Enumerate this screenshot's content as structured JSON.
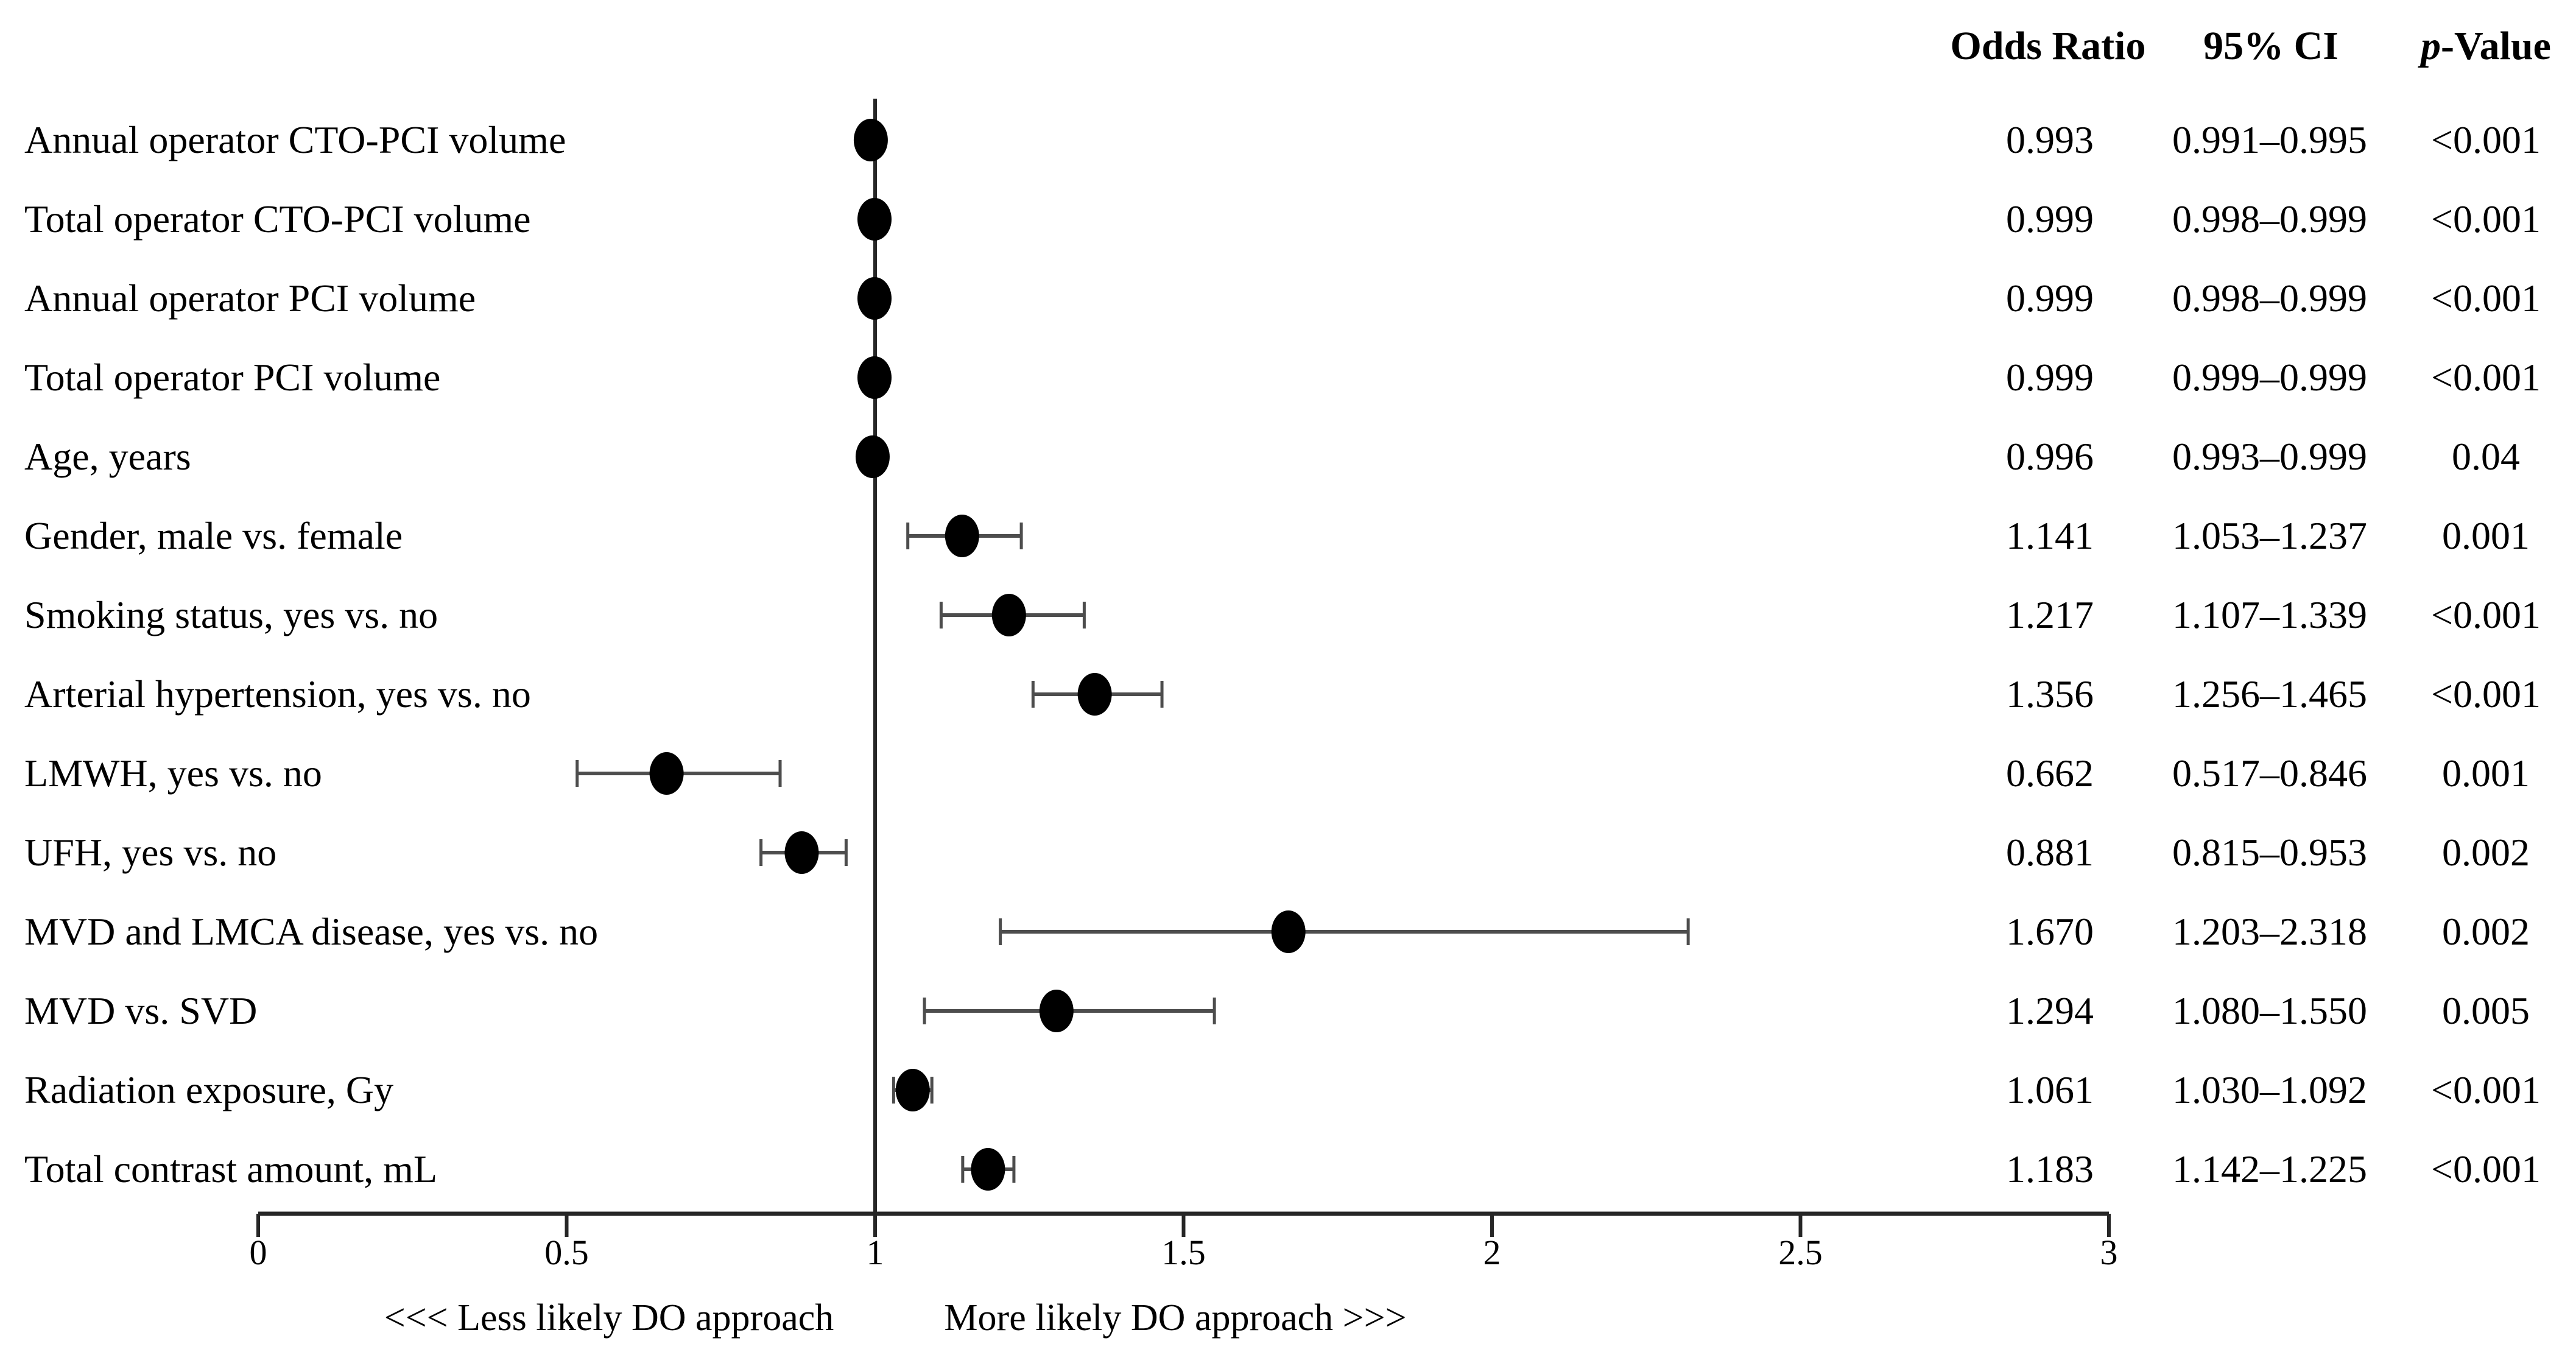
{
  "colors": {
    "background": "#ffffff",
    "text": "#000000",
    "marker": "#000000",
    "whisker": "#4d4d4d",
    "axis": "#262626"
  },
  "chart_data": {
    "type": "scatter",
    "chart_variant": "forest-plot",
    "title": "",
    "xlabel": "",
    "ylabel": "",
    "xlim": [
      0,
      3
    ],
    "x_tick_values": [
      0,
      0.5,
      1,
      1.5,
      2,
      2.5,
      3
    ],
    "x_tick_labels": [
      "0",
      "0.5",
      "1",
      "1.5",
      "2",
      "2.5",
      "3"
    ],
    "reference_line_x": 1,
    "grid": "off",
    "column_headers": {
      "odds_ratio": "Odds Ratio",
      "ci": "95% CI",
      "p_italic": "p",
      "p_rest": "-Value"
    },
    "x_axis_direction_labels": {
      "left": "<<< Less likely DO approach",
      "right": "More likely DO approach >>>"
    },
    "rows": [
      {
        "label": "Annual operator CTO-PCI volume",
        "or": 0.993,
        "or_text": "0.993",
        "ci_low": 0.991,
        "ci_high": 0.995,
        "ci_text": "0.991–0.995",
        "p_text": "<0.001"
      },
      {
        "label": "Total operator CTO-PCI volume",
        "or": 0.999,
        "or_text": "0.999",
        "ci_low": 0.998,
        "ci_high": 0.999,
        "ci_text": "0.998–0.999",
        "p_text": "<0.001"
      },
      {
        "label": "Annual operator PCI volume",
        "or": 0.999,
        "or_text": "0.999",
        "ci_low": 0.998,
        "ci_high": 0.999,
        "ci_text": "0.998–0.999",
        "p_text": "<0.001"
      },
      {
        "label": "Total operator PCI volume",
        "or": 0.999,
        "or_text": "0.999",
        "ci_low": 0.999,
        "ci_high": 0.999,
        "ci_text": "0.999–0.999",
        "p_text": "<0.001"
      },
      {
        "label": "Age, years",
        "or": 0.996,
        "or_text": "0.996",
        "ci_low": 0.993,
        "ci_high": 0.999,
        "ci_text": "0.993–0.999",
        "p_text": "0.04"
      },
      {
        "label": "Gender, male vs. female",
        "or": 1.141,
        "or_text": "1.141",
        "ci_low": 1.053,
        "ci_high": 1.237,
        "ci_text": "1.053–1.237",
        "p_text": "0.001"
      },
      {
        "label": "Smoking status, yes vs. no",
        "or": 1.217,
        "or_text": "1.217",
        "ci_low": 1.107,
        "ci_high": 1.339,
        "ci_text": "1.107–1.339",
        "p_text": "<0.001"
      },
      {
        "label": "Arterial hypertension, yes vs. no",
        "or": 1.356,
        "or_text": "1.356",
        "ci_low": 1.256,
        "ci_high": 1.465,
        "ci_text": "1.256–1.465",
        "p_text": "<0.001"
      },
      {
        "label": "LMWH, yes vs. no",
        "or": 0.662,
        "or_text": "0.662",
        "ci_low": 0.517,
        "ci_high": 0.846,
        "ci_text": "0.517–0.846",
        "p_text": "0.001"
      },
      {
        "label": "UFH, yes vs. no",
        "or": 0.881,
        "or_text": "0.881",
        "ci_low": 0.815,
        "ci_high": 0.953,
        "ci_text": "0.815–0.953",
        "p_text": "0.002"
      },
      {
        "label": "MVD and LMCA disease, yes vs. no",
        "or": 1.67,
        "or_text": "1.670",
        "ci_low": 1.203,
        "ci_high": 2.318,
        "ci_text": "1.203–2.318",
        "p_text": "0.002"
      },
      {
        "label": "MVD vs. SVD",
        "or": 1.294,
        "or_text": "1.294",
        "ci_low": 1.08,
        "ci_high": 1.55,
        "ci_text": "1.080–1.550",
        "p_text": "0.005"
      },
      {
        "label": "Radiation exposure, Gy",
        "or": 1.061,
        "or_text": "1.061",
        "ci_low": 1.03,
        "ci_high": 1.092,
        "ci_text": "1.030–1.092",
        "p_text": "<0.001"
      },
      {
        "label": "Total contrast amount, mL",
        "or": 1.183,
        "or_text": "1.183",
        "ci_low": 1.142,
        "ci_high": 1.225,
        "ci_text": "1.142–1.225",
        "p_text": "<0.001"
      }
    ]
  }
}
